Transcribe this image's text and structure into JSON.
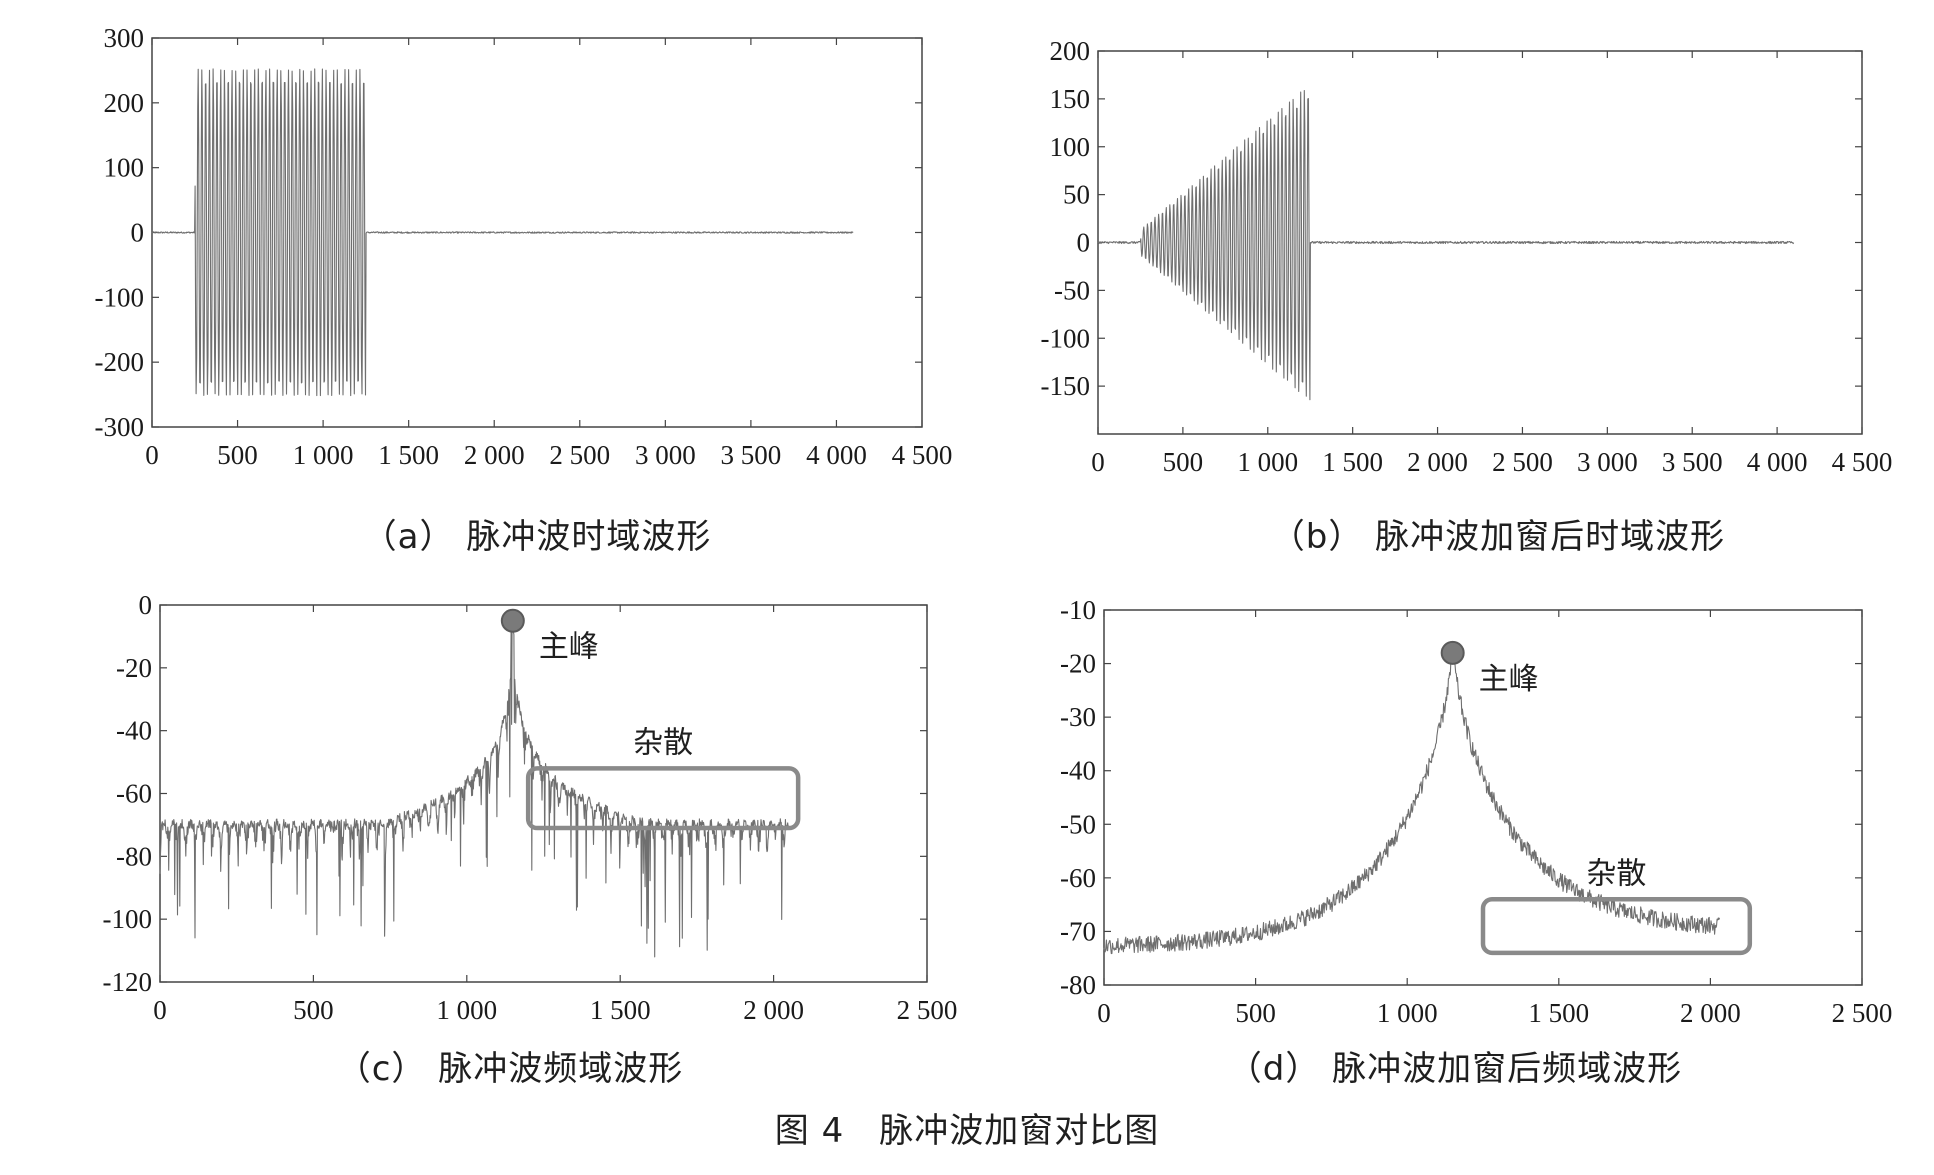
{
  "figure_caption": "图 4　脉冲波加窗对比图",
  "colors": {
    "signal": "#6f6f6f",
    "axes": "#444444",
    "marker": "#7a7a7a",
    "box": "#8a8a8a"
  },
  "annotations": {
    "main_peak": "主峰",
    "spurious": "杂散"
  },
  "chart_data": [
    {
      "id": "a",
      "type": "line",
      "title": "（a） 脉冲波时域波形",
      "xlim": [
        0,
        4500
      ],
      "ylim": [
        -300,
        300
      ],
      "xticks": [
        0,
        500,
        1000,
        1500,
        2000,
        2500,
        3000,
        3500,
        4000,
        4500
      ],
      "xtick_labels": [
        "0",
        "500",
        "1 000",
        "1 500",
        "2 000",
        "2 500",
        "3 000",
        "3 500",
        "4 000",
        "4 500"
      ],
      "yticks": [
        300,
        200,
        100,
        0,
        -100,
        -200,
        -300
      ],
      "ytick_labels": [
        "300",
        "200",
        "100",
        "0",
        "-100",
        "-200",
        "-300"
      ],
      "signal": {
        "kind": "burst",
        "x_end": 4100,
        "burst_start": 250,
        "burst_end": 1250,
        "amplitude": 255,
        "envelope": "constant"
      }
    },
    {
      "id": "b",
      "type": "line",
      "title": "（b） 脉冲波加窗后时域波形",
      "xlim": [
        0,
        4500
      ],
      "ylim": [
        -200,
        200
      ],
      "xticks": [
        0,
        500,
        1000,
        1500,
        2000,
        2500,
        3000,
        3500,
        4000,
        4500
      ],
      "xtick_labels": [
        "0",
        "500",
        "1 000",
        "1 500",
        "2 000",
        "2 500",
        "3 000",
        "3 500",
        "4 000",
        "4 500"
      ],
      "yticks": [
        200,
        150,
        100,
        50,
        0,
        -50,
        -100,
        -150
      ],
      "ytick_labels": [
        "200",
        "150",
        "100",
        "50",
        "0",
        "-50",
        "-100",
        "-150"
      ],
      "signal": {
        "kind": "burst",
        "x_end": 4100,
        "burst_start": 250,
        "burst_end": 1250,
        "amplitude": 168,
        "envelope": "ramp"
      }
    },
    {
      "id": "c",
      "type": "line",
      "title": "（c） 脉冲波频域波形",
      "xlim": [
        0,
        2500
      ],
      "ylim": [
        -120,
        0
      ],
      "xticks": [
        0,
        500,
        1000,
        1500,
        2000,
        2500
      ],
      "xtick_labels": [
        "0",
        "500",
        "1 000",
        "1 500",
        "2 000",
        "2 500"
      ],
      "yticks": [
        0,
        -20,
        -40,
        -60,
        -80,
        -100,
        -120
      ],
      "ytick_labels": [
        "0",
        "-20",
        "-40",
        "-60",
        "-80",
        "-100",
        "-120"
      ],
      "peak": {
        "x": 1150,
        "y": -5
      },
      "spectrum": {
        "kind": "sidelobes",
        "x_start": 0,
        "x_end": 2050,
        "floor_level": -68
      },
      "spur_box": {
        "x": [
          1200,
          2080
        ],
        "y": [
          -71,
          -52
        ]
      }
    },
    {
      "id": "d",
      "type": "line",
      "title": "（d） 脉冲波加窗后频域波形",
      "xlim": [
        0,
        2500
      ],
      "ylim": [
        -80,
        -10
      ],
      "xticks": [
        0,
        500,
        1000,
        1500,
        2000,
        2500
      ],
      "xtick_labels": [
        "0",
        "500",
        "1 000",
        "1 500",
        "2 000",
        "2 500"
      ],
      "yticks": [
        -10,
        -20,
        -30,
        -40,
        -50,
        -60,
        -70,
        -80
      ],
      "ytick_labels": [
        "-10",
        "-20",
        "-30",
        "-40",
        "-50",
        "-60",
        "-70",
        "-80"
      ],
      "peak": {
        "x": 1150,
        "y": -18
      },
      "spectrum": {
        "kind": "smooth",
        "x_start": 0,
        "x_end": 2030,
        "floor_left": -73,
        "floor_right": -70
      },
      "spur_box": {
        "x": [
          1250,
          2130
        ],
        "y": [
          -74,
          -64
        ]
      }
    }
  ]
}
